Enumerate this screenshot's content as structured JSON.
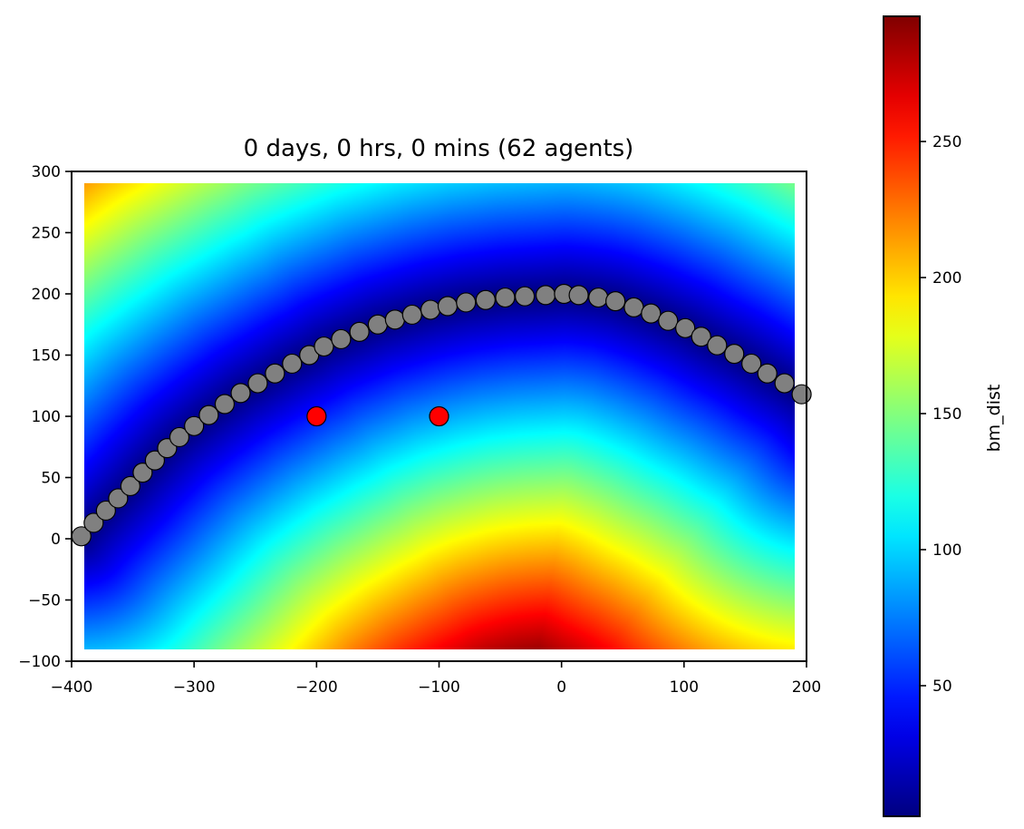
{
  "chart_data": [
    {
      "type": "heatmap",
      "title": "0 days, 0 hrs, 0 mins (62 agents)",
      "xlabel": "",
      "ylabel": "",
      "xlim": [
        -400,
        200
      ],
      "ylim": [
        -100,
        300
      ],
      "xticks": [
        -400,
        -300,
        -200,
        -100,
        0,
        100,
        200
      ],
      "yticks": [
        -100,
        -50,
        0,
        50,
        100,
        150,
        200,
        250,
        300
      ],
      "xtick_labels": [
        "−400",
        "−300",
        "−200",
        "−100",
        "0",
        "100",
        "200"
      ],
      "ytick_labels": [
        "−100",
        "−50",
        "0",
        "50",
        "100",
        "150",
        "200",
        "250",
        "300"
      ],
      "grid": false,
      "heatmap_extent": {
        "x": [
          -390,
          190
        ],
        "y": [
          -90,
          290
        ]
      },
      "colormap": "jet",
      "heatmap_field": "distance to agent chain",
      "agents": {
        "color": "#808080",
        "edge_color": "#000000",
        "points": [
          [
            -392,
            2
          ],
          [
            -382,
            13
          ],
          [
            -372,
            23
          ],
          [
            -362,
            33
          ],
          [
            -352,
            43
          ],
          [
            -342,
            54
          ],
          [
            -332,
            64
          ],
          [
            -322,
            74
          ],
          [
            -312,
            83
          ],
          [
            -300,
            92
          ],
          [
            -288,
            101
          ],
          [
            -275,
            110
          ],
          [
            -262,
            119
          ],
          [
            -248,
            127
          ],
          [
            -234,
            135
          ],
          [
            -220,
            143
          ],
          [
            -206,
            150
          ],
          [
            -194,
            157
          ],
          [
            -180,
            163
          ],
          [
            -165,
            169
          ],
          [
            -150,
            175
          ],
          [
            -136,
            179
          ],
          [
            -122,
            183
          ],
          [
            -107,
            187
          ],
          [
            -93,
            190
          ],
          [
            -78,
            193
          ],
          [
            -62,
            195
          ],
          [
            -46,
            197
          ],
          [
            -30,
            198
          ],
          [
            -13,
            199
          ],
          [
            2,
            200
          ],
          [
            14,
            199
          ],
          [
            30,
            197
          ],
          [
            44,
            194
          ],
          [
            59,
            189
          ],
          [
            73,
            184
          ],
          [
            87,
            178
          ],
          [
            101,
            172
          ],
          [
            114,
            165
          ],
          [
            127,
            158
          ],
          [
            141,
            151
          ],
          [
            155,
            143
          ],
          [
            168,
            135
          ],
          [
            182,
            127
          ],
          [
            196,
            118
          ]
        ]
      },
      "targets": {
        "color": "#ff0000",
        "edge_color": "#000000",
        "points": [
          [
            -200,
            100
          ],
          [
            -100,
            100
          ]
        ]
      }
    },
    {
      "type": "colorbar",
      "label": "bm_dist",
      "range": [
        2,
        296
      ],
      "ticks": [
        50,
        100,
        150,
        200,
        250
      ],
      "tick_labels": [
        "50",
        "100",
        "150",
        "200",
        "250"
      ],
      "colormap": "jet"
    }
  ]
}
